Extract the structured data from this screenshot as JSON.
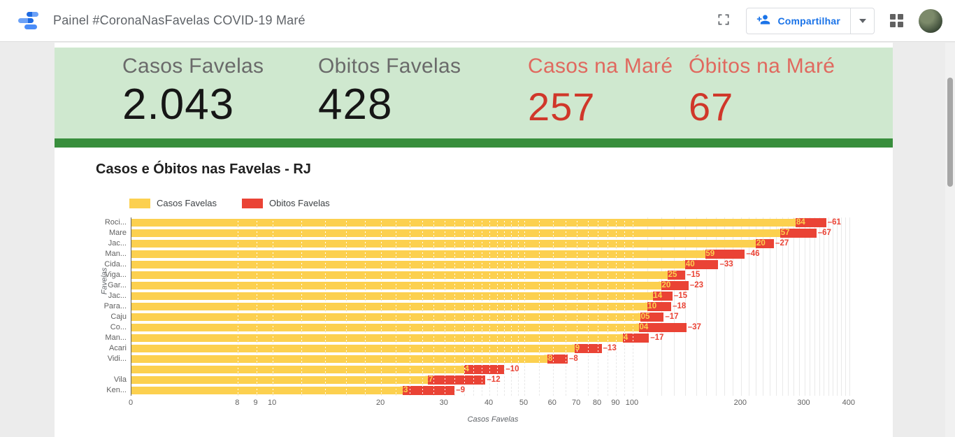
{
  "app_bar": {
    "title": "Painel #CoronaNasFavelas COVID-19 Maré",
    "share_button": "Compartilhar"
  },
  "stats": {
    "items": [
      {
        "label": "Casos Favelas",
        "value": "2.043",
        "color": "#161616"
      },
      {
        "label": "Obitos Favelas",
        "value": "428",
        "color": "#161616"
      },
      {
        "label": "Casos na Maré",
        "value": "257",
        "color": "#d0372a"
      },
      {
        "label": "Óbitos na Maré",
        "value": "67",
        "color": "#d0372a"
      }
    ]
  },
  "chart": {
    "title": "Casos e Óbitos nas Favelas - RJ",
    "legend": [
      {
        "label": "Casos Favelas",
        "color": "#FCD04F"
      },
      {
        "label": "Obitos Favelas",
        "color": "#EA4335"
      }
    ],
    "y_axis_title": "Favelas",
    "x_axis_title": "Casos Favelas"
  },
  "chart_data": {
    "type": "bar",
    "orientation": "horizontal",
    "stacked": true,
    "x_scale": "log",
    "title": "Casos e Óbitos nas Favelas - RJ",
    "xlabel": "Casos Favelas",
    "ylabel": "Favelas",
    "categories": [
      "Roci...",
      "Mare",
      "Jac...",
      "Man...",
      "Cida...",
      "Viga...",
      "Gar...",
      "Jac...",
      "Para...",
      "Caju",
      "Co...",
      "Man...",
      "Acari",
      "Vidi...",
      "",
      "Vila",
      "Ken..."
    ],
    "series": [
      {
        "name": "Casos Favelas",
        "color": "#FCD04F",
        "values": [
          284,
          257,
          220,
          159,
          140,
          125,
          120,
          114,
          110,
          105,
          104,
          94,
          69,
          58,
          34,
          27,
          23
        ]
      },
      {
        "name": "Obitos Favelas",
        "color": "#EA4335",
        "values": [
          61,
          67,
          27,
          46,
          33,
          15,
          23,
          15,
          18,
          17,
          37,
          17,
          13,
          8,
          10,
          12,
          9
        ]
      }
    ],
    "x_ticks": [
      0,
      8,
      9,
      10,
      20,
      30,
      40,
      50,
      60,
      70,
      80,
      90,
      100,
      200,
      300,
      400
    ],
    "xlim": [
      0,
      430
    ]
  }
}
